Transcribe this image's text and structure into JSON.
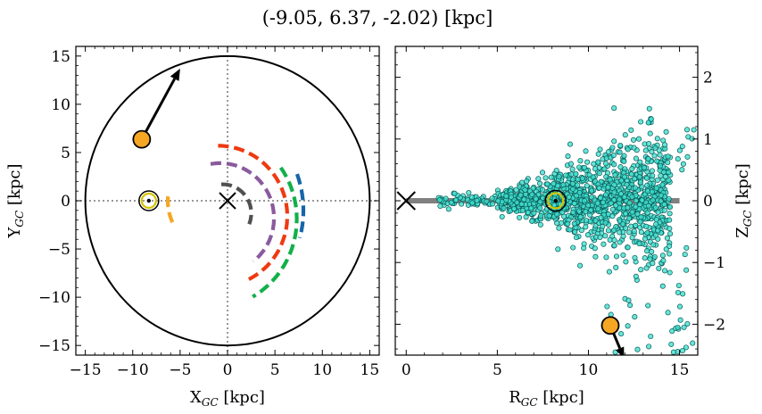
{
  "title": "(-9.05, 6.37, -2.02) [kpc]",
  "chart_data": [
    {
      "type": "line",
      "panel": "left",
      "xlabel": "X",
      "xlabel_sub": "GC",
      "xlabel_unit": " [kpc]",
      "ylabel": "Y",
      "ylabel_sub": "GC",
      "ylabel_unit": " [kpc]",
      "xlim": [
        -16,
        16
      ],
      "ylim": [
        -16,
        16
      ],
      "xticks": [
        -15,
        -10,
        -5,
        0,
        5,
        10,
        15
      ],
      "xtick_labels": [
        "−15",
        "−10",
        "−5",
        "0",
        "5",
        "10",
        "15"
      ],
      "yticks": [
        -15,
        -10,
        -5,
        0,
        5,
        10,
        15
      ],
      "ytick_labels": [
        "−15",
        "−10",
        "−5",
        "0",
        "5",
        "10",
        "15"
      ],
      "boundary_circle": {
        "cx": 0,
        "cy": 0,
        "r": 15
      },
      "center_marker": {
        "x": 0,
        "y": 0
      },
      "dotted_guides": {
        "x": 0,
        "y": 0
      },
      "arms": [
        {
          "color": "#505050",
          "r": 3.0,
          "cx": -0.5,
          "cy": -1.3,
          "start_deg": 93,
          "end_deg": -22
        },
        {
          "color": "#f5a623",
          "r": 5.3,
          "cx": -1.0,
          "cy": 0.0,
          "start_deg": 205,
          "end_deg": 175
        },
        {
          "color": "#8a5a9e",
          "r": 5.7,
          "cx": -0.8,
          "cy": -1.8,
          "start_deg": 100,
          "end_deg": -52
        },
        {
          "color": "#ee3a12",
          "r": 7.3,
          "cx": -1.0,
          "cy": -1.6,
          "start_deg": 90,
          "end_deg": -65
        },
        {
          "color": "#12b04a",
          "r": 9.3,
          "cx": -2.0,
          "cy": -1.9,
          "start_deg": 35,
          "end_deg": -60
        },
        {
          "color": "#1565a8",
          "r": 11.0,
          "cx": -3.0,
          "cy": -1.0,
          "start_deg": 20,
          "end_deg": -15
        }
      ],
      "sun": {
        "x": -8.3,
        "y": 0.0
      },
      "object": {
        "x": -9.05,
        "y": 6.37,
        "color": "#f5a623"
      },
      "velocity_arrow": {
        "from": [
          -9.05,
          6.37
        ],
        "to": [
          -5.0,
          13.7
        ]
      }
    },
    {
      "type": "scatter",
      "panel": "right",
      "xlabel": "R",
      "xlabel_sub": "GC",
      "xlabel_unit": " [kpc]",
      "ylabel": "Z",
      "ylabel_sub": "GC",
      "ylabel_unit": " [kpc]",
      "xlim": [
        -0.6,
        16
      ],
      "ylim": [
        -2.5,
        2.5
      ],
      "xticks": [
        0,
        5,
        10,
        15
      ],
      "xtick_labels": [
        "0",
        "5",
        "10",
        "15"
      ],
      "yticks": [
        -2,
        -1,
        0,
        1,
        2
      ],
      "ytick_labels": [
        "−2",
        "−1",
        "0",
        "1",
        "2"
      ],
      "disk_band": {
        "x_start": 0,
        "x_end": 15,
        "z": 0
      },
      "center_marker": {
        "x": 0,
        "y": 0
      },
      "sun": {
        "x": 8.2,
        "y": 0.0
      },
      "points_color": "#40e0d0",
      "n_points": 1300,
      "object": {
        "x": 11.2,
        "y": -2.02,
        "color": "#f5a623"
      },
      "velocity_arrow": {
        "from": [
          11.2,
          -2.02
        ],
        "to": [
          11.95,
          -2.55
        ]
      }
    }
  ]
}
